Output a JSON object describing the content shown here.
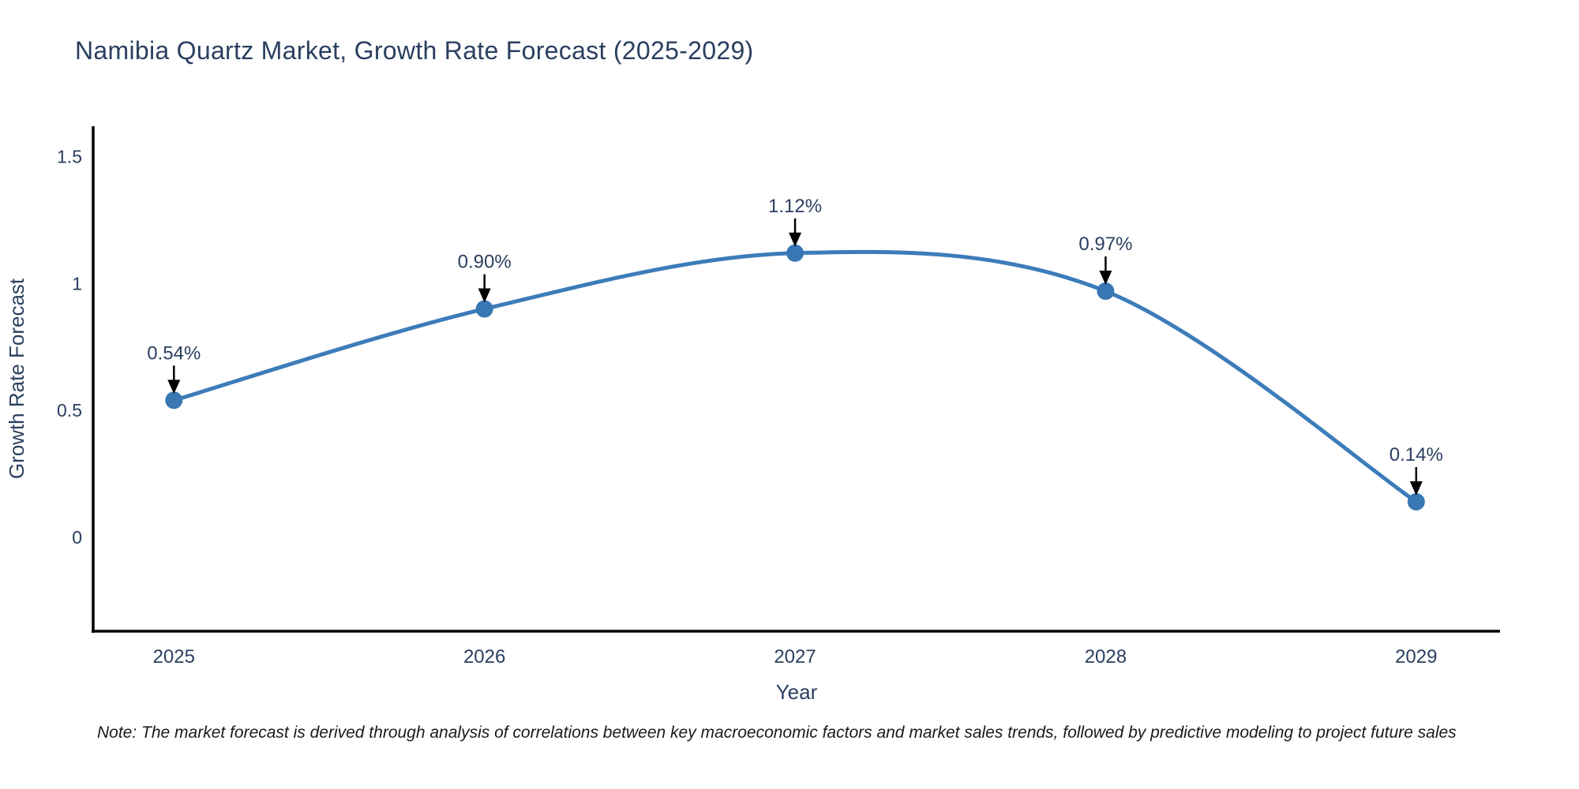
{
  "chart_data": {
    "type": "line",
    "title": "Namibia Quartz Market, Growth Rate Forecast (2025-2029)",
    "xlabel": "Year",
    "ylabel": "Growth Rate Forecast",
    "series": [
      {
        "name": "Growth Rate Forecast",
        "x": [
          2025,
          2026,
          2027,
          2028,
          2029
        ],
        "values": [
          0.54,
          0.9,
          1.12,
          0.97,
          0.14
        ],
        "point_labels": [
          "0.54%",
          "0.90%",
          "1.12%",
          "0.97%",
          "0.14%"
        ]
      }
    ],
    "line_shape": "spline",
    "markers": true,
    "annotations_arrows": true,
    "grid": false,
    "legend_position": "none",
    "xlim": [
      2024.74,
      2029.27
    ],
    "ylim": [
      -0.37,
      1.62
    ],
    "xticks": [
      2025,
      2026,
      2027,
      2028,
      2029
    ],
    "xtick_labels": [
      "2025",
      "2026",
      "2027",
      "2028",
      "2029"
    ],
    "yticks": [
      0,
      0.5,
      1,
      1.5
    ],
    "ytick_labels": [
      "0",
      "0.5",
      "1",
      "1.5"
    ],
    "colors": {
      "line": "#3d7cba",
      "marker": "#3877b3",
      "axis_line": "#000000",
      "tick_text": "#2a3f5f",
      "title_text": "#2a3f5f",
      "annotation_text": "#2a3f5f",
      "arrow": "#000000",
      "background": "#ffffff"
    }
  },
  "note": "Note: The market forecast is derived through analysis of correlations between key macroeconomic factors and market sales trends, followed by predictive modeling to project future sales"
}
